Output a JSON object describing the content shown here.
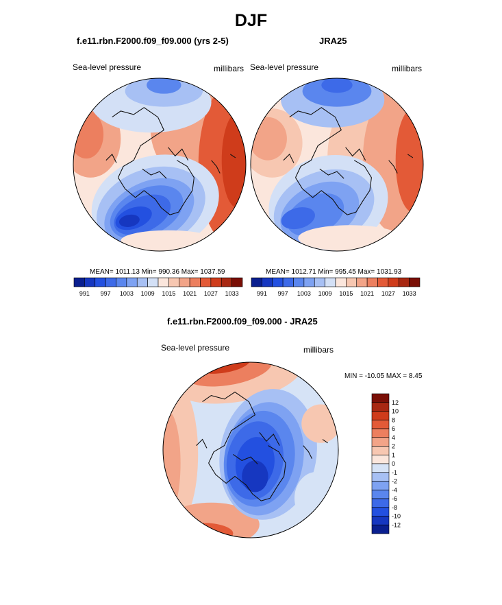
{
  "header": {
    "title": "DJF"
  },
  "panels": [
    {
      "title": "f.e11.rbn.F2000.f09_f09.000 (yrs 2-5)",
      "left_label": "Sea-level pressure",
      "right_label": "millibars",
      "stats": "MEAN= 1011.13  Min= 990.36  Max= 1037.59"
    },
    {
      "title": "JRA25",
      "left_label": "Sea-level pressure",
      "right_label": "millibars",
      "stats": "MEAN= 1012.71  Min= 995.45  Max= 1031.93"
    },
    {
      "title": "f.e11.rbn.F2000.f09_f09.000 - JRA25",
      "left_label": "Sea-level pressure",
      "right_label": "millibars",
      "stats": "MIN = -10.05 MAX =   8.45"
    }
  ],
  "colors": {
    "slp_scale": [
      "#0a1f8f",
      "#1637c0",
      "#2350e0",
      "#3d6ae8",
      "#5a86ee",
      "#7ea2f2",
      "#a7c0f4",
      "#d3e0f6",
      "#fbe6dc",
      "#f7c7b1",
      "#f2a488",
      "#ec7f5f",
      "#e35a37",
      "#cf3c1b",
      "#a82812",
      "#7a0f06"
    ],
    "diff_scale": [
      "#0a1f8f",
      "#1637c0",
      "#2350e0",
      "#3d6ae8",
      "#5a86ee",
      "#7ea2f2",
      "#a7c0f4",
      "#d6e3f6",
      "#fbe6dc",
      "#f7c7b1",
      "#f2a488",
      "#ec7f5f",
      "#e35a37",
      "#cf3c1b",
      "#a82812",
      "#7a0f06"
    ]
  },
  "chart_data": [
    {
      "type": "heatmap",
      "title": "f.e11.rbn.F2000.f09_f09.000 (yrs 2-5)",
      "variable": "Sea-level pressure",
      "units": "millibars",
      "projection": "north polar stereographic",
      "mean": 1011.13,
      "min": 990.36,
      "max": 1037.59,
      "colorbar_levels": [
        991,
        994,
        997,
        1000,
        1003,
        1006,
        1009,
        1012,
        1015,
        1018,
        1021,
        1024,
        1027,
        1030,
        1033
      ],
      "colorbar_tick_labels": [
        "991",
        "997",
        "1003",
        "1009",
        "1015",
        "1021",
        "1027",
        "1033"
      ]
    },
    {
      "type": "heatmap",
      "title": "JRA25",
      "variable": "Sea-level pressure",
      "units": "millibars",
      "projection": "north polar stereographic",
      "mean": 1012.71,
      "min": 995.45,
      "max": 1031.93,
      "colorbar_levels": [
        991,
        994,
        997,
        1000,
        1003,
        1006,
        1009,
        1012,
        1015,
        1018,
        1021,
        1024,
        1027,
        1030,
        1033
      ],
      "colorbar_tick_labels": [
        "991",
        "997",
        "1003",
        "1009",
        "1015",
        "1021",
        "1027",
        "1033"
      ]
    },
    {
      "type": "heatmap",
      "title": "f.e11.rbn.F2000.f09_f09.000 - JRA25",
      "variable": "Sea-level pressure",
      "units": "millibars",
      "projection": "north polar stereographic",
      "min": -10.05,
      "max": 8.45,
      "colorbar_levels": [
        -12,
        -10,
        -8,
        -6,
        -4,
        -2,
        -1,
        0,
        1,
        2,
        4,
        6,
        8,
        10,
        12
      ],
      "colorbar_tick_labels": [
        "12",
        "10",
        "8",
        "6",
        "4",
        "2",
        "1",
        "0",
        "-1",
        "-2",
        "-4",
        "-6",
        "-8",
        "-10",
        "-12"
      ]
    }
  ]
}
